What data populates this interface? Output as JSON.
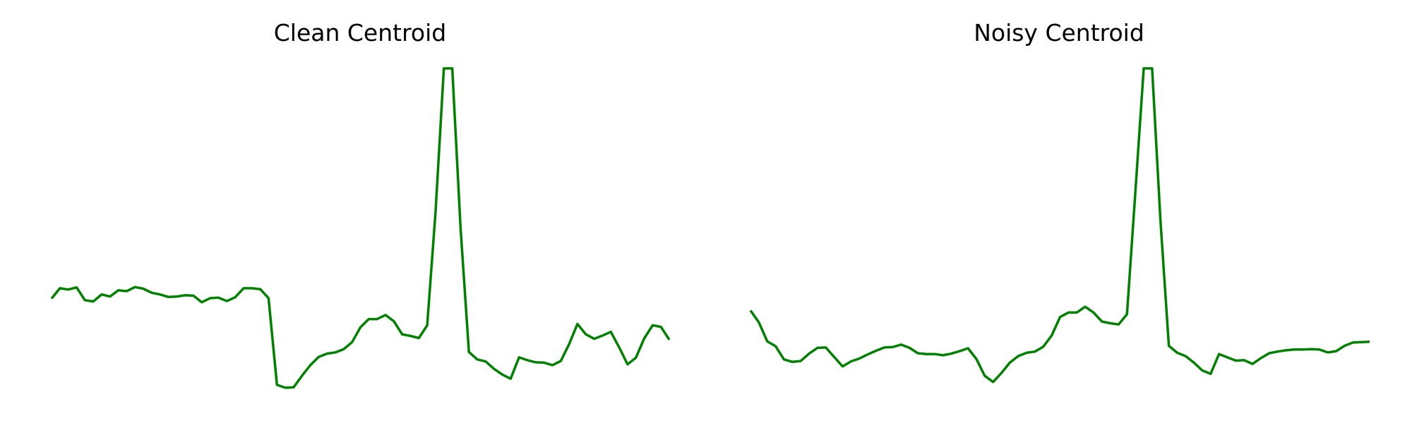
{
  "colors": {
    "line": "#008000",
    "background": "#ffffff"
  },
  "chart_data": [
    {
      "type": "line",
      "title": "Clean Centroid",
      "axis": "off",
      "grid": false,
      "ylim": [
        0,
        8
      ],
      "y": [
        1.2,
        1.45,
        1.42,
        1.47,
        1.16,
        1.13,
        1.3,
        1.25,
        1.4,
        1.38,
        1.48,
        1.44,
        1.34,
        1.3,
        1.24,
        1.25,
        1.28,
        1.27,
        1.11,
        1.21,
        1.22,
        1.14,
        1.23,
        1.45,
        1.45,
        1.43,
        1.21,
        -0.9,
        -0.97,
        -0.96,
        -0.68,
        -0.42,
        -0.22,
        -0.14,
        -0.11,
        -0.03,
        0.14,
        0.5,
        0.7,
        0.7,
        0.8,
        0.65,
        0.33,
        0.29,
        0.24,
        0.55,
        3.3,
        6.8,
        6.8,
        2.9,
        -0.1,
        -0.28,
        -0.33,
        -0.51,
        -0.65,
        -0.75,
        -0.23,
        -0.3,
        -0.35,
        -0.36,
        -0.42,
        -0.32,
        0.09,
        0.58,
        0.33,
        0.22,
        0.3,
        0.39,
        0.01,
        -0.4,
        -0.24,
        0.23,
        0.55,
        0.51,
        0.2
      ]
    },
    {
      "type": "line",
      "title": "Noisy Centroid",
      "axis": "off",
      "grid": false,
      "ylim": [
        0,
        8
      ],
      "y": [
        0.91,
        0.62,
        0.16,
        0.04,
        -0.28,
        -0.34,
        -0.32,
        -0.14,
        0.0,
        0.01,
        -0.22,
        -0.45,
        -0.33,
        -0.26,
        -0.16,
        -0.07,
        0.01,
        0.02,
        0.08,
        0.0,
        -0.13,
        -0.15,
        -0.15,
        -0.18,
        -0.14,
        -0.08,
        -0.01,
        -0.27,
        -0.68,
        -0.83,
        -0.61,
        -0.36,
        -0.2,
        -0.12,
        -0.09,
        0.03,
        0.3,
        0.75,
        0.86,
        0.86,
        1.0,
        0.86,
        0.64,
        0.6,
        0.57,
        0.82,
        3.8,
        6.8,
        6.8,
        3.1,
        0.05,
        -0.12,
        -0.2,
        -0.36,
        -0.55,
        -0.63,
        -0.15,
        -0.23,
        -0.31,
        -0.3,
        -0.39,
        -0.25,
        -0.13,
        -0.09,
        -0.06,
        -0.04,
        -0.04,
        -0.03,
        -0.04,
        -0.11,
        -0.08,
        0.05,
        0.13,
        0.14,
        0.15
      ]
    }
  ]
}
